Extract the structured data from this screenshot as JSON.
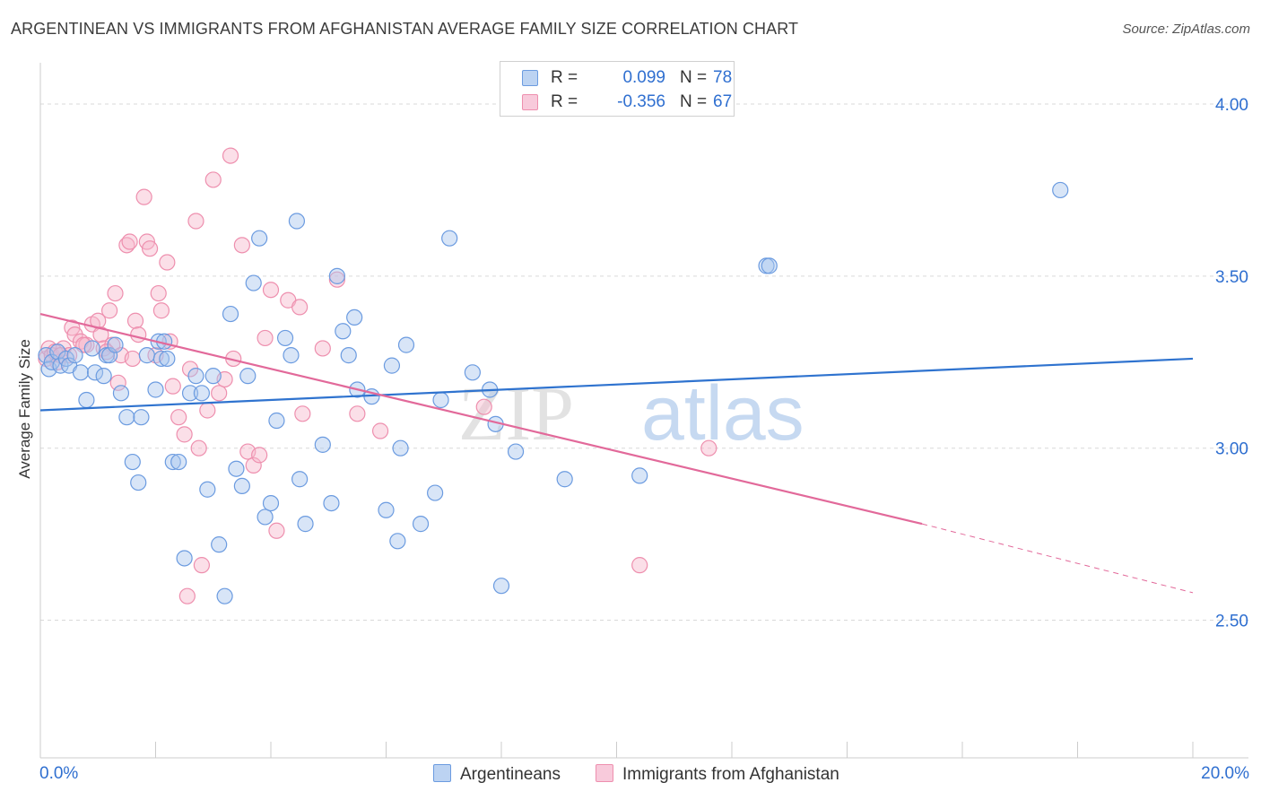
{
  "title": "ARGENTINEAN VS IMMIGRANTS FROM AFGHANISTAN AVERAGE FAMILY SIZE CORRELATION CHART",
  "source": "Source: ZipAtlas.com",
  "watermark": {
    "zip": "ZIP",
    "atlas": "atlas"
  },
  "colors": {
    "blue_fill": "#a9c6ee",
    "blue_stroke": "#6b9be0",
    "blue_line": "#2f73cf",
    "pink_fill": "#f6b9cd",
    "pink_stroke": "#ee8fae",
    "pink_line": "#e2699a",
    "axis_text": "#2f6fd0",
    "grid": "#d9d9d9"
  },
  "legend_top": [
    {
      "r_label": "R =",
      "r_value": "0.099",
      "n_label": "N =",
      "n_value": "78"
    },
    {
      "r_label": "R =",
      "r_value": "-0.356",
      "n_label": "N =",
      "n_value": "67"
    }
  ],
  "legend_bottom": [
    "Argentineans",
    "Immigrants from Afghanistan"
  ],
  "x_tick_labels": {
    "min": "0.0%",
    "max": "20.0%"
  },
  "chart_data": {
    "type": "scatter",
    "title": "ARGENTINEAN VS IMMIGRANTS FROM AFGHANISTAN AVERAGE FAMILY SIZE CORRELATION CHART",
    "xlabel": "",
    "ylabel": "Average Family Size",
    "xlim": [
      0,
      20
    ],
    "ylim": [
      2.1,
      4.12
    ],
    "y_ticks": [
      2.5,
      3.0,
      3.5,
      4.0
    ],
    "y_tick_labels": [
      "2.50",
      "3.00",
      "3.50",
      "4.00"
    ],
    "grid": true,
    "legend_position": "bottom",
    "series": [
      {
        "name": "Argentineans",
        "trend": {
          "x": [
            0.0,
            20.0
          ],
          "y": [
            3.11,
            3.26
          ]
        },
        "points": [
          [
            0.1,
            3.27
          ],
          [
            0.15,
            3.23
          ],
          [
            0.2,
            3.25
          ],
          [
            0.3,
            3.28
          ],
          [
            0.35,
            3.24
          ],
          [
            0.45,
            3.26
          ],
          [
            0.5,
            3.24
          ],
          [
            0.7,
            3.22
          ],
          [
            0.8,
            3.14
          ],
          [
            0.9,
            3.29
          ],
          [
            0.95,
            3.22
          ],
          [
            1.1,
            3.21
          ],
          [
            1.15,
            3.27
          ],
          [
            1.2,
            3.27
          ],
          [
            1.4,
            3.16
          ],
          [
            1.5,
            3.09
          ],
          [
            1.6,
            2.96
          ],
          [
            1.7,
            2.9
          ],
          [
            1.75,
            3.09
          ],
          [
            1.85,
            3.27
          ],
          [
            2.0,
            3.17
          ],
          [
            2.05,
            3.31
          ],
          [
            2.1,
            3.26
          ],
          [
            2.2,
            3.26
          ],
          [
            2.3,
            2.96
          ],
          [
            2.4,
            2.96
          ],
          [
            2.5,
            2.68
          ],
          [
            2.6,
            3.16
          ],
          [
            2.7,
            3.21
          ],
          [
            2.8,
            3.16
          ],
          [
            2.9,
            2.88
          ],
          [
            3.0,
            3.21
          ],
          [
            3.1,
            2.72
          ],
          [
            3.2,
            2.57
          ],
          [
            3.3,
            3.39
          ],
          [
            3.4,
            2.94
          ],
          [
            3.5,
            2.89
          ],
          [
            3.6,
            3.21
          ],
          [
            3.7,
            3.48
          ],
          [
            3.8,
            3.61
          ],
          [
            3.9,
            2.8
          ],
          [
            4.0,
            2.84
          ],
          [
            4.1,
            3.08
          ],
          [
            4.25,
            3.32
          ],
          [
            4.35,
            3.27
          ],
          [
            4.45,
            3.66
          ],
          [
            4.5,
            2.91
          ],
          [
            4.6,
            2.78
          ],
          [
            4.9,
            3.01
          ],
          [
            5.05,
            2.84
          ],
          [
            5.15,
            3.5
          ],
          [
            5.25,
            3.34
          ],
          [
            5.35,
            3.27
          ],
          [
            5.45,
            3.38
          ],
          [
            5.5,
            3.17
          ],
          [
            5.75,
            3.15
          ],
          [
            6.0,
            2.82
          ],
          [
            6.1,
            3.24
          ],
          [
            6.2,
            2.73
          ],
          [
            6.25,
            3.0
          ],
          [
            6.35,
            3.3
          ],
          [
            6.6,
            2.78
          ],
          [
            6.85,
            2.87
          ],
          [
            6.95,
            3.14
          ],
          [
            7.1,
            3.61
          ],
          [
            7.5,
            3.22
          ],
          [
            7.8,
            3.17
          ],
          [
            7.9,
            3.07
          ],
          [
            8.0,
            2.6
          ],
          [
            8.25,
            2.99
          ],
          [
            9.1,
            2.91
          ],
          [
            10.4,
            2.92
          ],
          [
            12.6,
            3.53
          ],
          [
            12.65,
            3.53
          ],
          [
            17.7,
            3.75
          ],
          [
            0.6,
            3.27
          ],
          [
            1.3,
            3.3
          ],
          [
            2.15,
            3.31
          ]
        ]
      },
      {
        "name": "Immigrants from Afghanistan",
        "trend": {
          "x": [
            0.0,
            15.3
          ],
          "y": [
            3.39,
            2.78
          ]
        },
        "trend_dashed": {
          "x": [
            15.3,
            20.0
          ],
          "y": [
            2.78,
            2.58
          ]
        },
        "points": [
          [
            0.1,
            3.26
          ],
          [
            0.15,
            3.29
          ],
          [
            0.2,
            3.27
          ],
          [
            0.3,
            3.25
          ],
          [
            0.4,
            3.29
          ],
          [
            0.5,
            3.27
          ],
          [
            0.55,
            3.35
          ],
          [
            0.6,
            3.33
          ],
          [
            0.7,
            3.31
          ],
          [
            0.8,
            3.3
          ],
          [
            0.9,
            3.36
          ],
          [
            1.0,
            3.37
          ],
          [
            1.05,
            3.33
          ],
          [
            1.1,
            3.29
          ],
          [
            1.2,
            3.4
          ],
          [
            1.25,
            3.3
          ],
          [
            1.3,
            3.45
          ],
          [
            1.35,
            3.19
          ],
          [
            1.4,
            3.27
          ],
          [
            1.5,
            3.59
          ],
          [
            1.6,
            3.26
          ],
          [
            1.65,
            3.37
          ],
          [
            1.7,
            3.33
          ],
          [
            1.8,
            3.73
          ],
          [
            1.85,
            3.6
          ],
          [
            1.9,
            3.58
          ],
          [
            2.0,
            3.27
          ],
          [
            2.05,
            3.45
          ],
          [
            2.1,
            3.4
          ],
          [
            2.2,
            3.54
          ],
          [
            2.25,
            3.31
          ],
          [
            2.3,
            3.18
          ],
          [
            2.4,
            3.09
          ],
          [
            2.5,
            3.04
          ],
          [
            2.55,
            2.57
          ],
          [
            2.6,
            3.23
          ],
          [
            2.7,
            3.66
          ],
          [
            2.75,
            3.0
          ],
          [
            2.8,
            2.66
          ],
          [
            2.9,
            3.11
          ],
          [
            3.0,
            3.78
          ],
          [
            3.1,
            3.16
          ],
          [
            3.2,
            3.2
          ],
          [
            3.3,
            3.85
          ],
          [
            3.35,
            3.26
          ],
          [
            3.5,
            3.59
          ],
          [
            3.6,
            2.99
          ],
          [
            3.7,
            2.95
          ],
          [
            3.8,
            2.98
          ],
          [
            3.9,
            3.32
          ],
          [
            4.0,
            3.46
          ],
          [
            4.1,
            2.76
          ],
          [
            4.3,
            3.43
          ],
          [
            4.5,
            3.41
          ],
          [
            4.55,
            3.1
          ],
          [
            4.9,
            3.29
          ],
          [
            5.15,
            3.49
          ],
          [
            5.5,
            3.1
          ],
          [
            5.9,
            3.05
          ],
          [
            7.7,
            3.12
          ],
          [
            10.4,
            2.66
          ],
          [
            11.6,
            3.0
          ],
          [
            0.25,
            3.28
          ],
          [
            0.75,
            3.3
          ],
          [
            1.55,
            3.6
          ],
          [
            0.35,
            3.27
          ],
          [
            1.15,
            3.28
          ]
        ]
      }
    ]
  }
}
